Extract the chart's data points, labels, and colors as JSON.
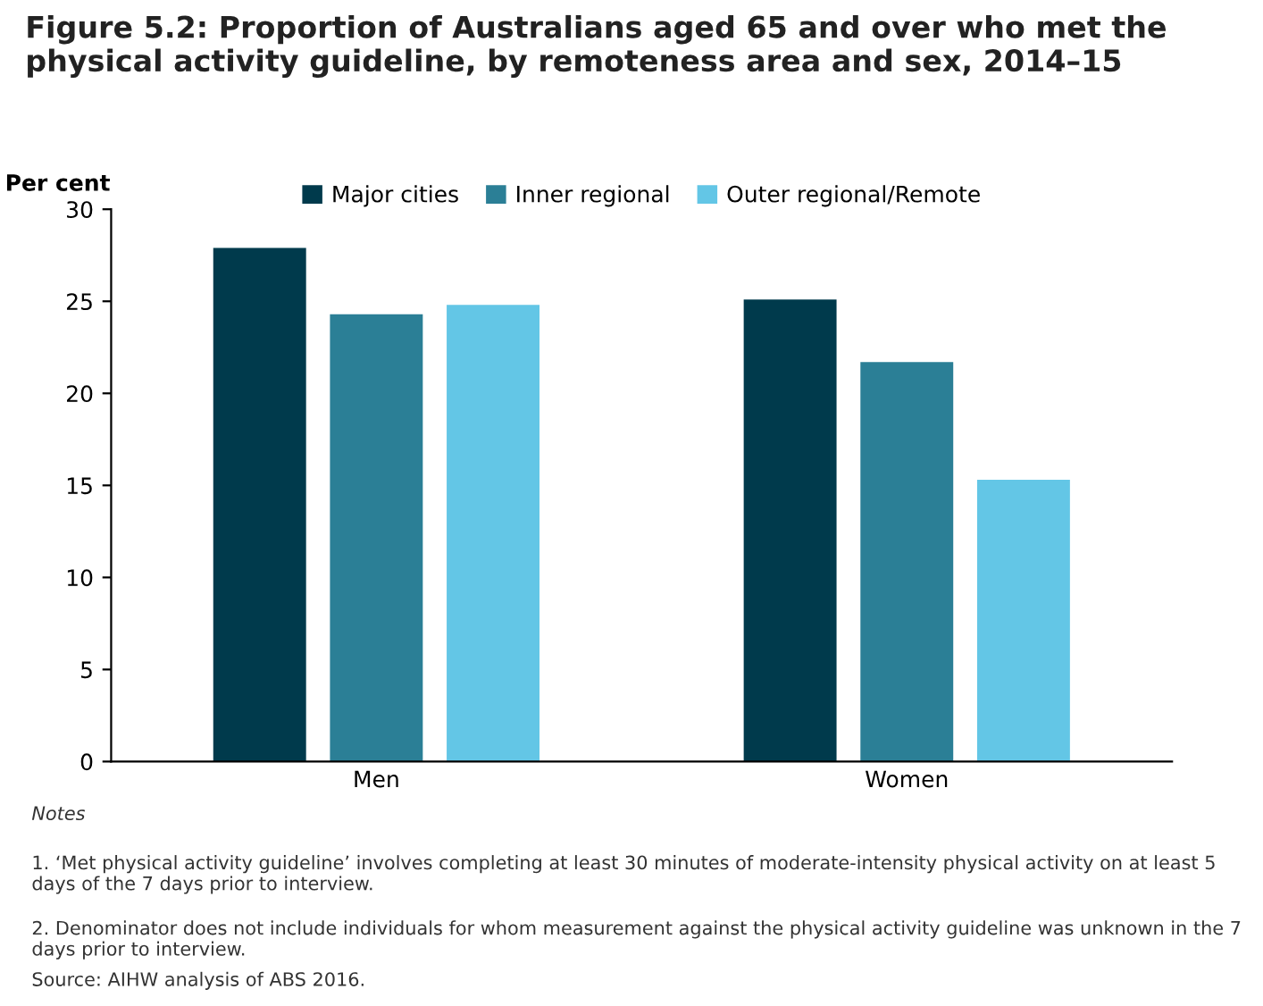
{
  "chart_data": {
    "type": "bar",
    "title": "Figure 5.2: Proportion of Australians aged 65 and over who met the physical activity guideline, by remoteness area and sex, 2014–15",
    "ylabel": "Per cent",
    "categories": [
      "Men",
      "Women"
    ],
    "series": [
      {
        "name": "Major cities",
        "color": "#003a4c",
        "values": [
          27.9,
          25.1
        ]
      },
      {
        "name": "Inner regional",
        "color": "#2b7f96",
        "values": [
          24.3,
          21.7
        ]
      },
      {
        "name": "Outer regional/Remote",
        "color": "#63c6e6",
        "values": [
          24.8,
          15.3
        ]
      }
    ],
    "ylim": [
      0,
      30
    ],
    "yticks": [
      0,
      5,
      10,
      15,
      20,
      25,
      30
    ],
    "grid": false,
    "legend": "top",
    "annotations": [
      "Notes",
      "1. ‘Met physical activity guideline’ involves completing at least 30 minutes of moderate-intensity physical activity on at least 5 days of the 7 days prior to interview.",
      "2. Denominator does not include individuals for whom measurement against the physical activity guideline was unknown in the 7 days prior to interview.",
      "Source: AIHW analysis of ABS 2016."
    ]
  }
}
